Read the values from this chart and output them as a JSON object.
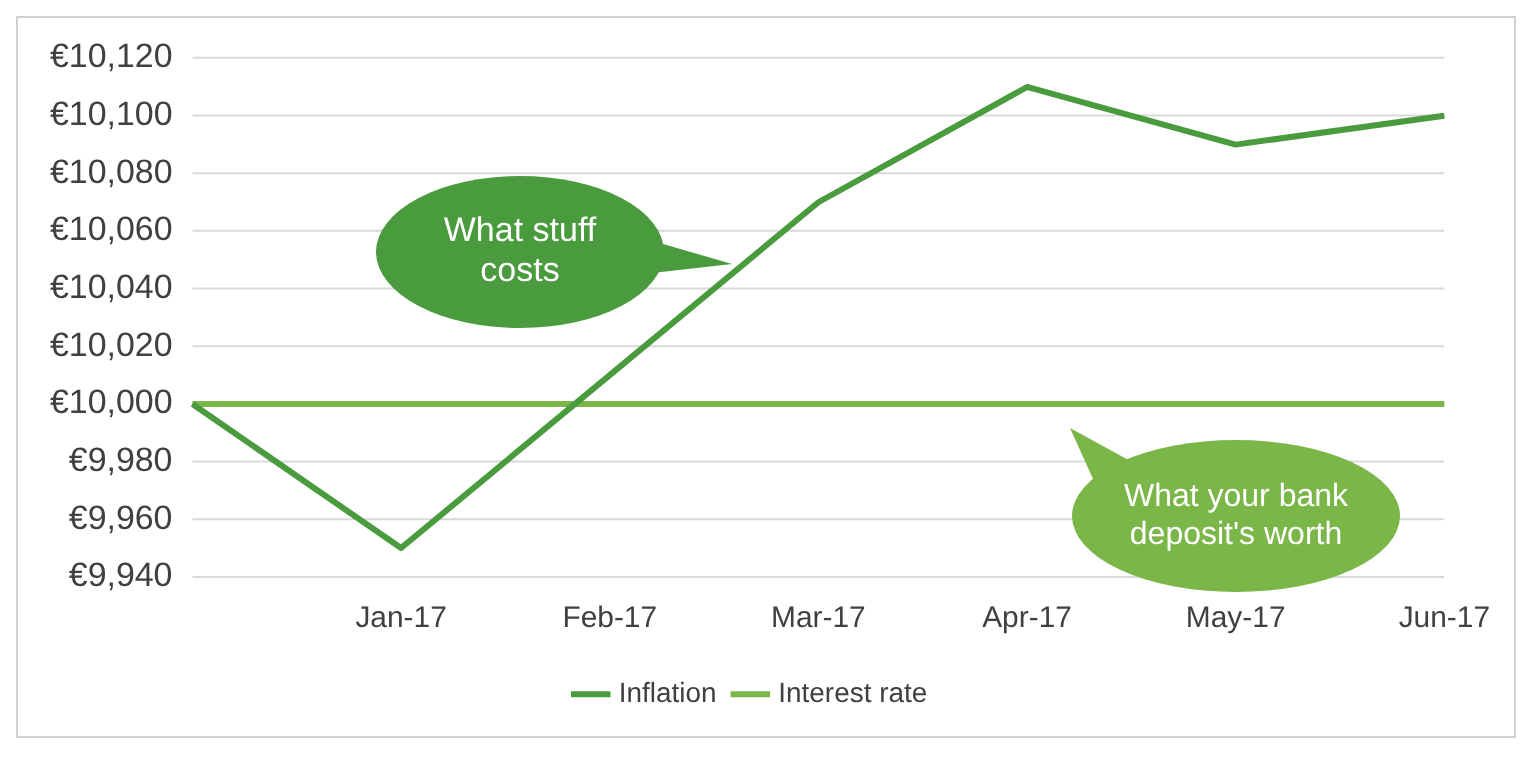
{
  "chart_data": {
    "type": "line",
    "categories": [
      null,
      "Jan-17",
      "Feb-17",
      "Mar-17",
      "Apr-17",
      "May-17",
      "Jun-17"
    ],
    "series": [
      {
        "name": "Inflation",
        "color": "#4a9a3e",
        "values": [
          10000,
          9950,
          10010,
          10070,
          10110,
          10090,
          10100
        ]
      },
      {
        "name": "Interest rate",
        "color": "#7ab648",
        "values": [
          10000,
          10000,
          10000,
          10000,
          10000,
          10000,
          10000
        ]
      }
    ],
    "ylim": [
      9940,
      10120
    ],
    "yticks": [
      {
        "value": 9940,
        "label": "€9,940"
      },
      {
        "value": 9960,
        "label": "€9,960"
      },
      {
        "value": 9980,
        "label": "€9,980"
      },
      {
        "value": 10000,
        "label": "€10,000"
      },
      {
        "value": 10020,
        "label": "€10,020"
      },
      {
        "value": 10040,
        "label": "€10,040"
      },
      {
        "value": 10060,
        "label": "€10,060"
      },
      {
        "value": 10080,
        "label": "€10,080"
      },
      {
        "value": 10100,
        "label": "€10,100"
      },
      {
        "value": 10120,
        "label": "€10,120"
      }
    ],
    "grid": "y",
    "legend": "bottom",
    "marker": "none",
    "line_style": "solid",
    "annotations": [
      "What stuff costs",
      "What your bank deposit's worth"
    ]
  }
}
